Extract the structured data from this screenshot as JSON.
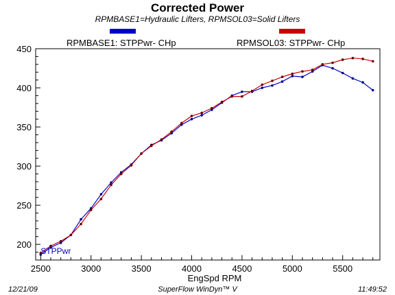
{
  "chart_data": {
    "type": "line",
    "title": "Corrected Power",
    "subtitle": "RPMBASE1=Hydraulic Lifters, RPMSOL03=Solid Lifters",
    "xlabel": "EngSpd  RPM",
    "ylabel": "",
    "trace_label": "STPPwr",
    "xlim": [
      2450,
      5870
    ],
    "ylim": [
      180,
      450
    ],
    "xticks": [
      2500,
      3000,
      3500,
      4000,
      4500,
      5000,
      5500
    ],
    "yticks": [
      200,
      250,
      300,
      350,
      400,
      450
    ],
    "grid": false,
    "legend_position": "top",
    "series": [
      {
        "name": "RPMBASE1: STPPwr- CHp",
        "color": "#0000cc",
        "x": [
          2500,
          2600,
          2700,
          2800,
          2900,
          3000,
          3100,
          3200,
          3300,
          3400,
          3500,
          3600,
          3700,
          3800,
          3900,
          4000,
          4100,
          4200,
          4300,
          4400,
          4500,
          4600,
          4700,
          4800,
          4900,
          5000,
          5100,
          5200,
          5300,
          5400,
          5500,
          5600,
          5700,
          5800
        ],
        "y": [
          187,
          196,
          202,
          212,
          232,
          246,
          264,
          279,
          292,
          302,
          316,
          327,
          333,
          342,
          353,
          360,
          365,
          372,
          381,
          390,
          395,
          395,
          400,
          403,
          408,
          415,
          414,
          421,
          429,
          425,
          419,
          412,
          407,
          397
        ]
      },
      {
        "name": "RPMSOL03: STPPwr- CHp",
        "color": "#cc0000",
        "x": [
          2500,
          2600,
          2700,
          2800,
          2900,
          3000,
          3100,
          3200,
          3300,
          3400,
          3500,
          3600,
          3700,
          3800,
          3900,
          4000,
          4100,
          4200,
          4300,
          4400,
          4500,
          4600,
          4700,
          4800,
          4900,
          5000,
          5100,
          5200,
          5300,
          5400,
          5500,
          5600,
          5700,
          5800
        ],
        "y": [
          189,
          198,
          204,
          212,
          226,
          244,
          258,
          276,
          290,
          301,
          316,
          326,
          334,
          344,
          355,
          364,
          368,
          374,
          382,
          389,
          389,
          396,
          404,
          409,
          414,
          418,
          421,
          423,
          430,
          432,
          436,
          438,
          437,
          434
        ]
      }
    ]
  },
  "footer": {
    "date": "12/21/09",
    "app": "SuperFlow WinDyn™ V",
    "time": "11:49:52"
  }
}
